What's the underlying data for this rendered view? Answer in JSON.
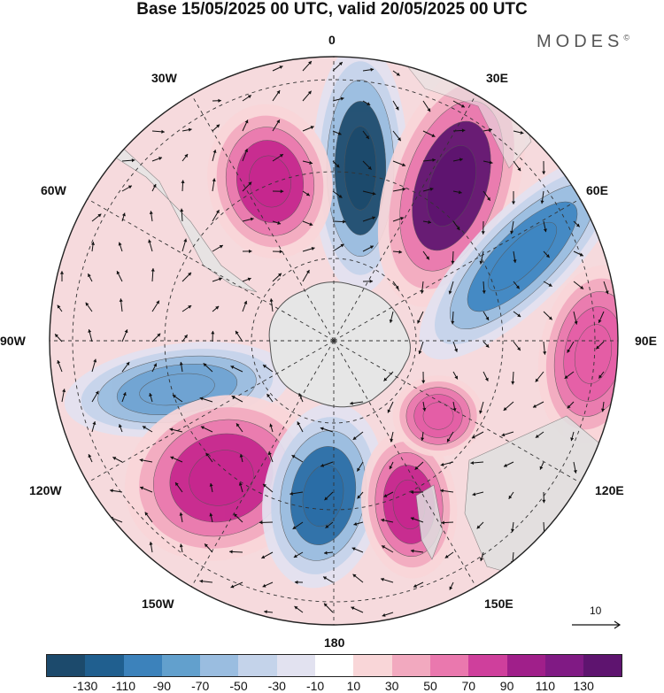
{
  "title": "Base 15/05/2025 00 UTC, valid 20/05/2025 00 UTC",
  "brand": {
    "name": "MODES",
    "mark": "©"
  },
  "map": {
    "projection": "south-polar-stereographic",
    "longitude_labels": {
      "lon_0": "0",
      "lon_30e": "30E",
      "lon_60e": "60E",
      "lon_90e": "90E",
      "lon_120e": "120E",
      "lon_150e": "150E",
      "lon_180": "180",
      "lon_150w": "150W",
      "lon_120w": "120W",
      "lon_90w": "90W",
      "lon_60w": "60W",
      "lon_30w": "30W"
    },
    "anomaly_centers": [
      {
        "name": "low-near-0",
        "sign": "negative",
        "min_level": -130,
        "color": "#1c4a6c"
      },
      {
        "name": "high-near-30e",
        "sign": "positive",
        "max_level": 130,
        "color": "#5e146f"
      },
      {
        "name": "low-near-60e",
        "sign": "negative",
        "min_level": -90,
        "color": "#3e86c2"
      },
      {
        "name": "high-near-90e",
        "sign": "positive",
        "max_level": 70,
        "color": "#e45ea6"
      },
      {
        "name": "high-near-30w",
        "sign": "positive",
        "max_level": 90,
        "color": "#c6278e"
      },
      {
        "name": "low-near-105w",
        "sign": "negative",
        "max_level": -70,
        "color": "#6fa3d2"
      },
      {
        "name": "high-near-135w",
        "sign": "positive",
        "max_level": 90,
        "color": "#c6278e"
      },
      {
        "name": "low-near-170w",
        "sign": "negative",
        "min_level": -110,
        "color": "#2a6da6"
      },
      {
        "name": "high-near-160e",
        "sign": "positive",
        "max_level": 90,
        "color": "#c6278e"
      },
      {
        "name": "high-near-125e",
        "sign": "positive",
        "max_level": 70,
        "color": "#e45ea6"
      }
    ],
    "vector_scale": {
      "label": "10"
    }
  },
  "colorbar": {
    "colors": [
      "#1c4a6c",
      "#205f8f",
      "#3c82bb",
      "#62a0cd",
      "#9abde0",
      "#c4d3ea",
      "#e2e2f0",
      "#ffffff",
      "#f9d6d8",
      "#f2a9bf",
      "#ea78ae",
      "#cf3f9c",
      "#a01f8a",
      "#801a84",
      "#5e146f"
    ],
    "ticks": [
      "-130",
      "-110",
      "-90",
      "-70",
      "-50",
      "-30",
      "-10",
      "10",
      "30",
      "50",
      "70",
      "90",
      "110",
      "130"
    ]
  }
}
